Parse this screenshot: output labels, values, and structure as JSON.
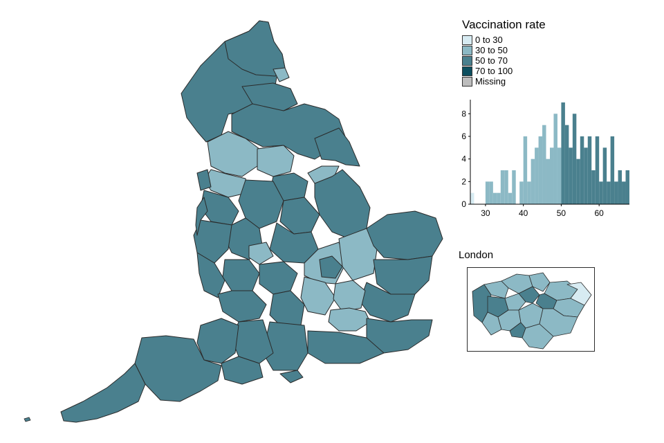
{
  "legend": {
    "title": "Vaccination rate",
    "items": [
      {
        "label": "0 to 30",
        "color": "#d7ebf2"
      },
      {
        "label": "30 to 50",
        "color": "#8cb9c5"
      },
      {
        "label": "50 to 70",
        "color": "#4a808e"
      },
      {
        "label": "70 to 100",
        "color": "#0d4f5f"
      },
      {
        "label": "Missing",
        "color": "#bdbdbd"
      }
    ]
  },
  "london": {
    "title": "London"
  },
  "colors": {
    "c30": "#d7ebf2",
    "c50": "#8cb9c5",
    "c70": "#4a808e",
    "c100": "#0d4f5f",
    "border": "#2a2a2a"
  },
  "chart_data": {
    "type": "bar",
    "title": "",
    "xlabel": "",
    "ylabel": "",
    "xlim": [
      26,
      68
    ],
    "ylim": [
      0,
      9
    ],
    "x_ticks": [
      30,
      40,
      50,
      60
    ],
    "y_ticks": [
      0,
      2,
      4,
      6,
      8
    ],
    "bin_width": 1,
    "bins": [
      {
        "x": 26,
        "count": 1
      },
      {
        "x": 30,
        "count": 2
      },
      {
        "x": 31,
        "count": 2
      },
      {
        "x": 32,
        "count": 1
      },
      {
        "x": 33,
        "count": 1
      },
      {
        "x": 34,
        "count": 3
      },
      {
        "x": 35,
        "count": 3
      },
      {
        "x": 36,
        "count": 1
      },
      {
        "x": 37,
        "count": 3
      },
      {
        "x": 38,
        "count": 0
      },
      {
        "x": 39,
        "count": 2
      },
      {
        "x": 40,
        "count": 6
      },
      {
        "x": 41,
        "count": 2
      },
      {
        "x": 42,
        "count": 4
      },
      {
        "x": 43,
        "count": 5
      },
      {
        "x": 44,
        "count": 6
      },
      {
        "x": 45,
        "count": 7
      },
      {
        "x": 46,
        "count": 4
      },
      {
        "x": 47,
        "count": 5
      },
      {
        "x": 48,
        "count": 8
      },
      {
        "x": 49,
        "count": 5
      },
      {
        "x": 50,
        "count": 9
      },
      {
        "x": 51,
        "count": 7
      },
      {
        "x": 52,
        "count": 5
      },
      {
        "x": 53,
        "count": 8
      },
      {
        "x": 54,
        "count": 4
      },
      {
        "x": 55,
        "count": 6
      },
      {
        "x": 56,
        "count": 5
      },
      {
        "x": 57,
        "count": 6
      },
      {
        "x": 58,
        "count": 3
      },
      {
        "x": 59,
        "count": 6
      },
      {
        "x": 60,
        "count": 2
      },
      {
        "x": 61,
        "count": 5
      },
      {
        "x": 62,
        "count": 2
      },
      {
        "x": 63,
        "count": 6
      },
      {
        "x": 64,
        "count": 2
      },
      {
        "x": 65,
        "count": 3
      },
      {
        "x": 66,
        "count": 2
      },
      {
        "x": 67,
        "count": 3
      }
    ]
  }
}
